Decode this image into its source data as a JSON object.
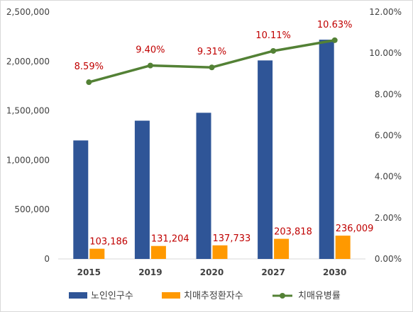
{
  "chart_data": {
    "type": "bar",
    "categories": [
      "2015",
      "2019",
      "2020",
      "2027",
      "2030"
    ],
    "series": [
      {
        "name": "노인인구수",
        "kind": "bar",
        "axis": "left",
        "color": "#2f5597",
        "values": [
          1200000,
          1400000,
          1480000,
          2010000,
          2220000
        ]
      },
      {
        "name": "치매추정환자수",
        "kind": "bar",
        "axis": "left",
        "color": "#ff9900",
        "values": [
          103186,
          131204,
          137733,
          203818,
          236009
        ],
        "labels": [
          "103,186",
          "131,204",
          "137,733",
          "203,818",
          "236,009"
        ]
      },
      {
        "name": "치매유병률",
        "kind": "line",
        "axis": "right",
        "color": "#538135",
        "values": [
          8.59,
          9.4,
          9.31,
          10.11,
          10.63
        ],
        "labels": [
          "8.59%",
          "9.40%",
          "9.31%",
          "10.11%",
          "10.63%"
        ]
      }
    ],
    "y_left": {
      "lim": [
        0,
        2500000
      ],
      "ticks": [
        "0",
        "500,000",
        "1,000,000",
        "1,500,000",
        "2,000,000",
        "2,500,000"
      ]
    },
    "y_right": {
      "lim": [
        0,
        12
      ],
      "ticks": [
        "0.00%",
        "2.00%",
        "4.00%",
        "6.00%",
        "8.00%",
        "10.00%",
        "12.00%"
      ]
    },
    "grid": false,
    "legend_position": "bottom",
    "data_label_color": "#c00000"
  }
}
